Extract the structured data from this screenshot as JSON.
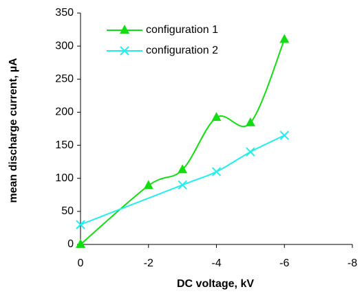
{
  "chart_data": {
    "type": "line",
    "xlabel": "DC voltage, kV",
    "ylabel": "mean discharge current, µA",
    "xlim": [
      0,
      -8
    ],
    "xticks": [
      0,
      -2,
      -4,
      -6,
      -8
    ],
    "ylim": [
      0,
      350
    ],
    "yticks": [
      0,
      50,
      100,
      150,
      200,
      250,
      300,
      350
    ],
    "legend": "top-left",
    "series": [
      {
        "name": "configuration 1",
        "color": "#11dd11",
        "marker": "triangle",
        "x": [
          0,
          -2,
          -3,
          -4,
          -5,
          -6
        ],
        "values": [
          0,
          89,
          113,
          192,
          184,
          310
        ]
      },
      {
        "name": "configuration 2",
        "color": "#22eeee",
        "marker": "x",
        "x": [
          0,
          -3,
          -4,
          -5,
          -6
        ],
        "values": [
          30,
          90,
          110,
          140,
          165
        ]
      }
    ]
  }
}
